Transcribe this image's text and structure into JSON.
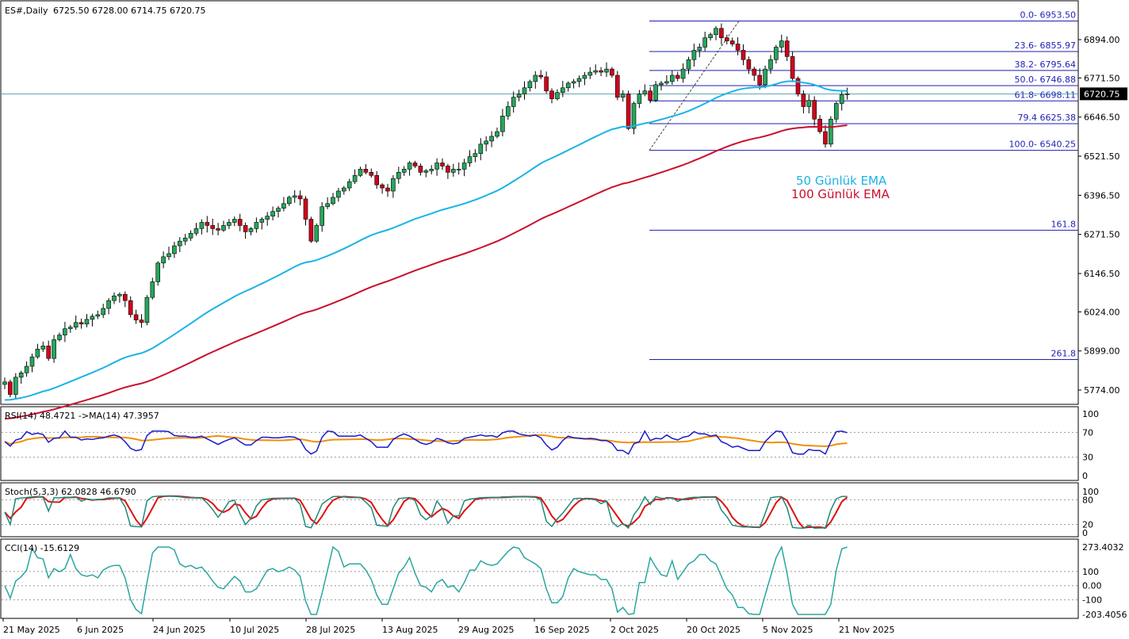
{
  "header": {
    "symbol": "ES#,Daily",
    "ohlc": "6725.50 6728.00 6714.75 6720.75"
  },
  "price_axis": {
    "ticks": [
      "6894.00",
      "6771.50",
      "6646.50",
      "6521.50",
      "6396.50",
      "6271.50",
      "6146.50",
      "6024.00",
      "5899.00",
      "5774.00"
    ],
    "current_price": "6720.75",
    "current_price_value": 6720.75
  },
  "time_axis": {
    "labels": [
      "21 May 2025",
      "6 Jun 2025",
      "24 Jun 2025",
      "10 Jul 2025",
      "28 Jul 2025",
      "13 Aug 2025",
      "29 Aug 2025",
      "16 Sep 2025",
      "2 Oct 2025",
      "20 Oct 2025",
      "5 Nov 2025",
      "21 Nov 2025"
    ]
  },
  "fibonacci": {
    "levels": [
      {
        "label": "0.0- 6953.50",
        "price": 6953.5
      },
      {
        "label": "23.6- 6855.97",
        "price": 6855.97
      },
      {
        "label": "38.2- 6795.64",
        "price": 6795.64
      },
      {
        "label": "50.0- 6746.88",
        "price": 6746.88
      },
      {
        "label": "61.8- 6698.11",
        "price": 6698.11
      },
      {
        "label": "79.4 6625.38",
        "price": 6625.38
      },
      {
        "label": "100.0- 6540.25",
        "price": 6540.25
      },
      {
        "label": "161.8",
        "price": 6284.86
      },
      {
        "label": "261.8",
        "price": 5871.6
      }
    ]
  },
  "legend": {
    "ema50": "50 Günlük EMA",
    "ema100": "100 Günlük EMA"
  },
  "rsi": {
    "title": "RSI(14) 48.4721  ->MA(14) 47.3957",
    "axis_labels": [
      "100",
      "70",
      "30",
      "0"
    ],
    "levels": [
      100,
      70,
      30,
      0
    ]
  },
  "stoch": {
    "title": "Stoch(5,3,3) 62.0828 46.6790",
    "axis_labels": [
      "100",
      "80",
      "20",
      "0"
    ],
    "levels": [
      100,
      80,
      20,
      0
    ]
  },
  "cci": {
    "title": "CCI(14) -15.6129",
    "axis_labels": [
      "273.4032",
      "100",
      "0.00",
      "-100",
      "-203.4056"
    ],
    "max": 273.4032,
    "min": -203.4056
  },
  "colors": {
    "bull": "#26a65b",
    "bear": "#d0021b",
    "ema50": "#1ab3e6",
    "ema100": "#c8102e",
    "fib": "#1f1fb4",
    "rsi": "#1a1acc",
    "rsi_ma": "#f0900a",
    "stoch_main": "#20897a",
    "stoch_signal": "#e01010",
    "cci": "#2aa6a0",
    "grid_dots": "#999999"
  },
  "chart_data": {
    "type": "candlestick",
    "closes": [
      5800,
      5760,
      5815,
      5829,
      5850,
      5880,
      5905,
      5915,
      5875,
      5935,
      5950,
      5970,
      5975,
      5990,
      5985,
      6000,
      6010,
      6015,
      6035,
      6060,
      6075,
      6080,
      6060,
      6015,
      5998,
      5990,
      6070,
      6120,
      6180,
      6200,
      6210,
      6235,
      6250,
      6260,
      6275,
      6290,
      6310,
      6300,
      6290,
      6285,
      6300,
      6310,
      6320,
      6300,
      6280,
      6290,
      6310,
      6320,
      6330,
      6345,
      6355,
      6370,
      6390,
      6395,
      6385,
      6320,
      6250,
      6300,
      6360,
      6370,
      6390,
      6410,
      6420,
      6440,
      6460,
      6480,
      6470,
      6460,
      6430,
      6420,
      6410,
      6450,
      6470,
      6480,
      6500,
      6490,
      6470,
      6475,
      6480,
      6500,
      6490,
      6470,
      6480,
      6480,
      6500,
      6520,
      6530,
      6560,
      6570,
      6585,
      6600,
      6650,
      6680,
      6710,
      6720,
      6740,
      6760,
      6780,
      6775,
      6730,
      6705,
      6725,
      6740,
      6755,
      6760,
      6770,
      6780,
      6790,
      6795,
      6790,
      6800,
      6780,
      6710,
      6720,
      6610,
      6690,
      6720,
      6730,
      6700,
      6750,
      6755,
      6760,
      6780,
      6770,
      6800,
      6830,
      6860,
      6870,
      6900,
      6910,
      6930,
      6900,
      6890,
      6880,
      6860,
      6830,
      6800,
      6780,
      6750,
      6800,
      6830,
      6870,
      6890,
      6840,
      6770,
      6720,
      6680,
      6700,
      6640,
      6600,
      6560,
      6640,
      6690,
      6718,
      6720.75
    ],
    "series": [
      {
        "name": "50 Günlük EMA"
      },
      {
        "name": "100 Günlük EMA"
      }
    ]
  }
}
